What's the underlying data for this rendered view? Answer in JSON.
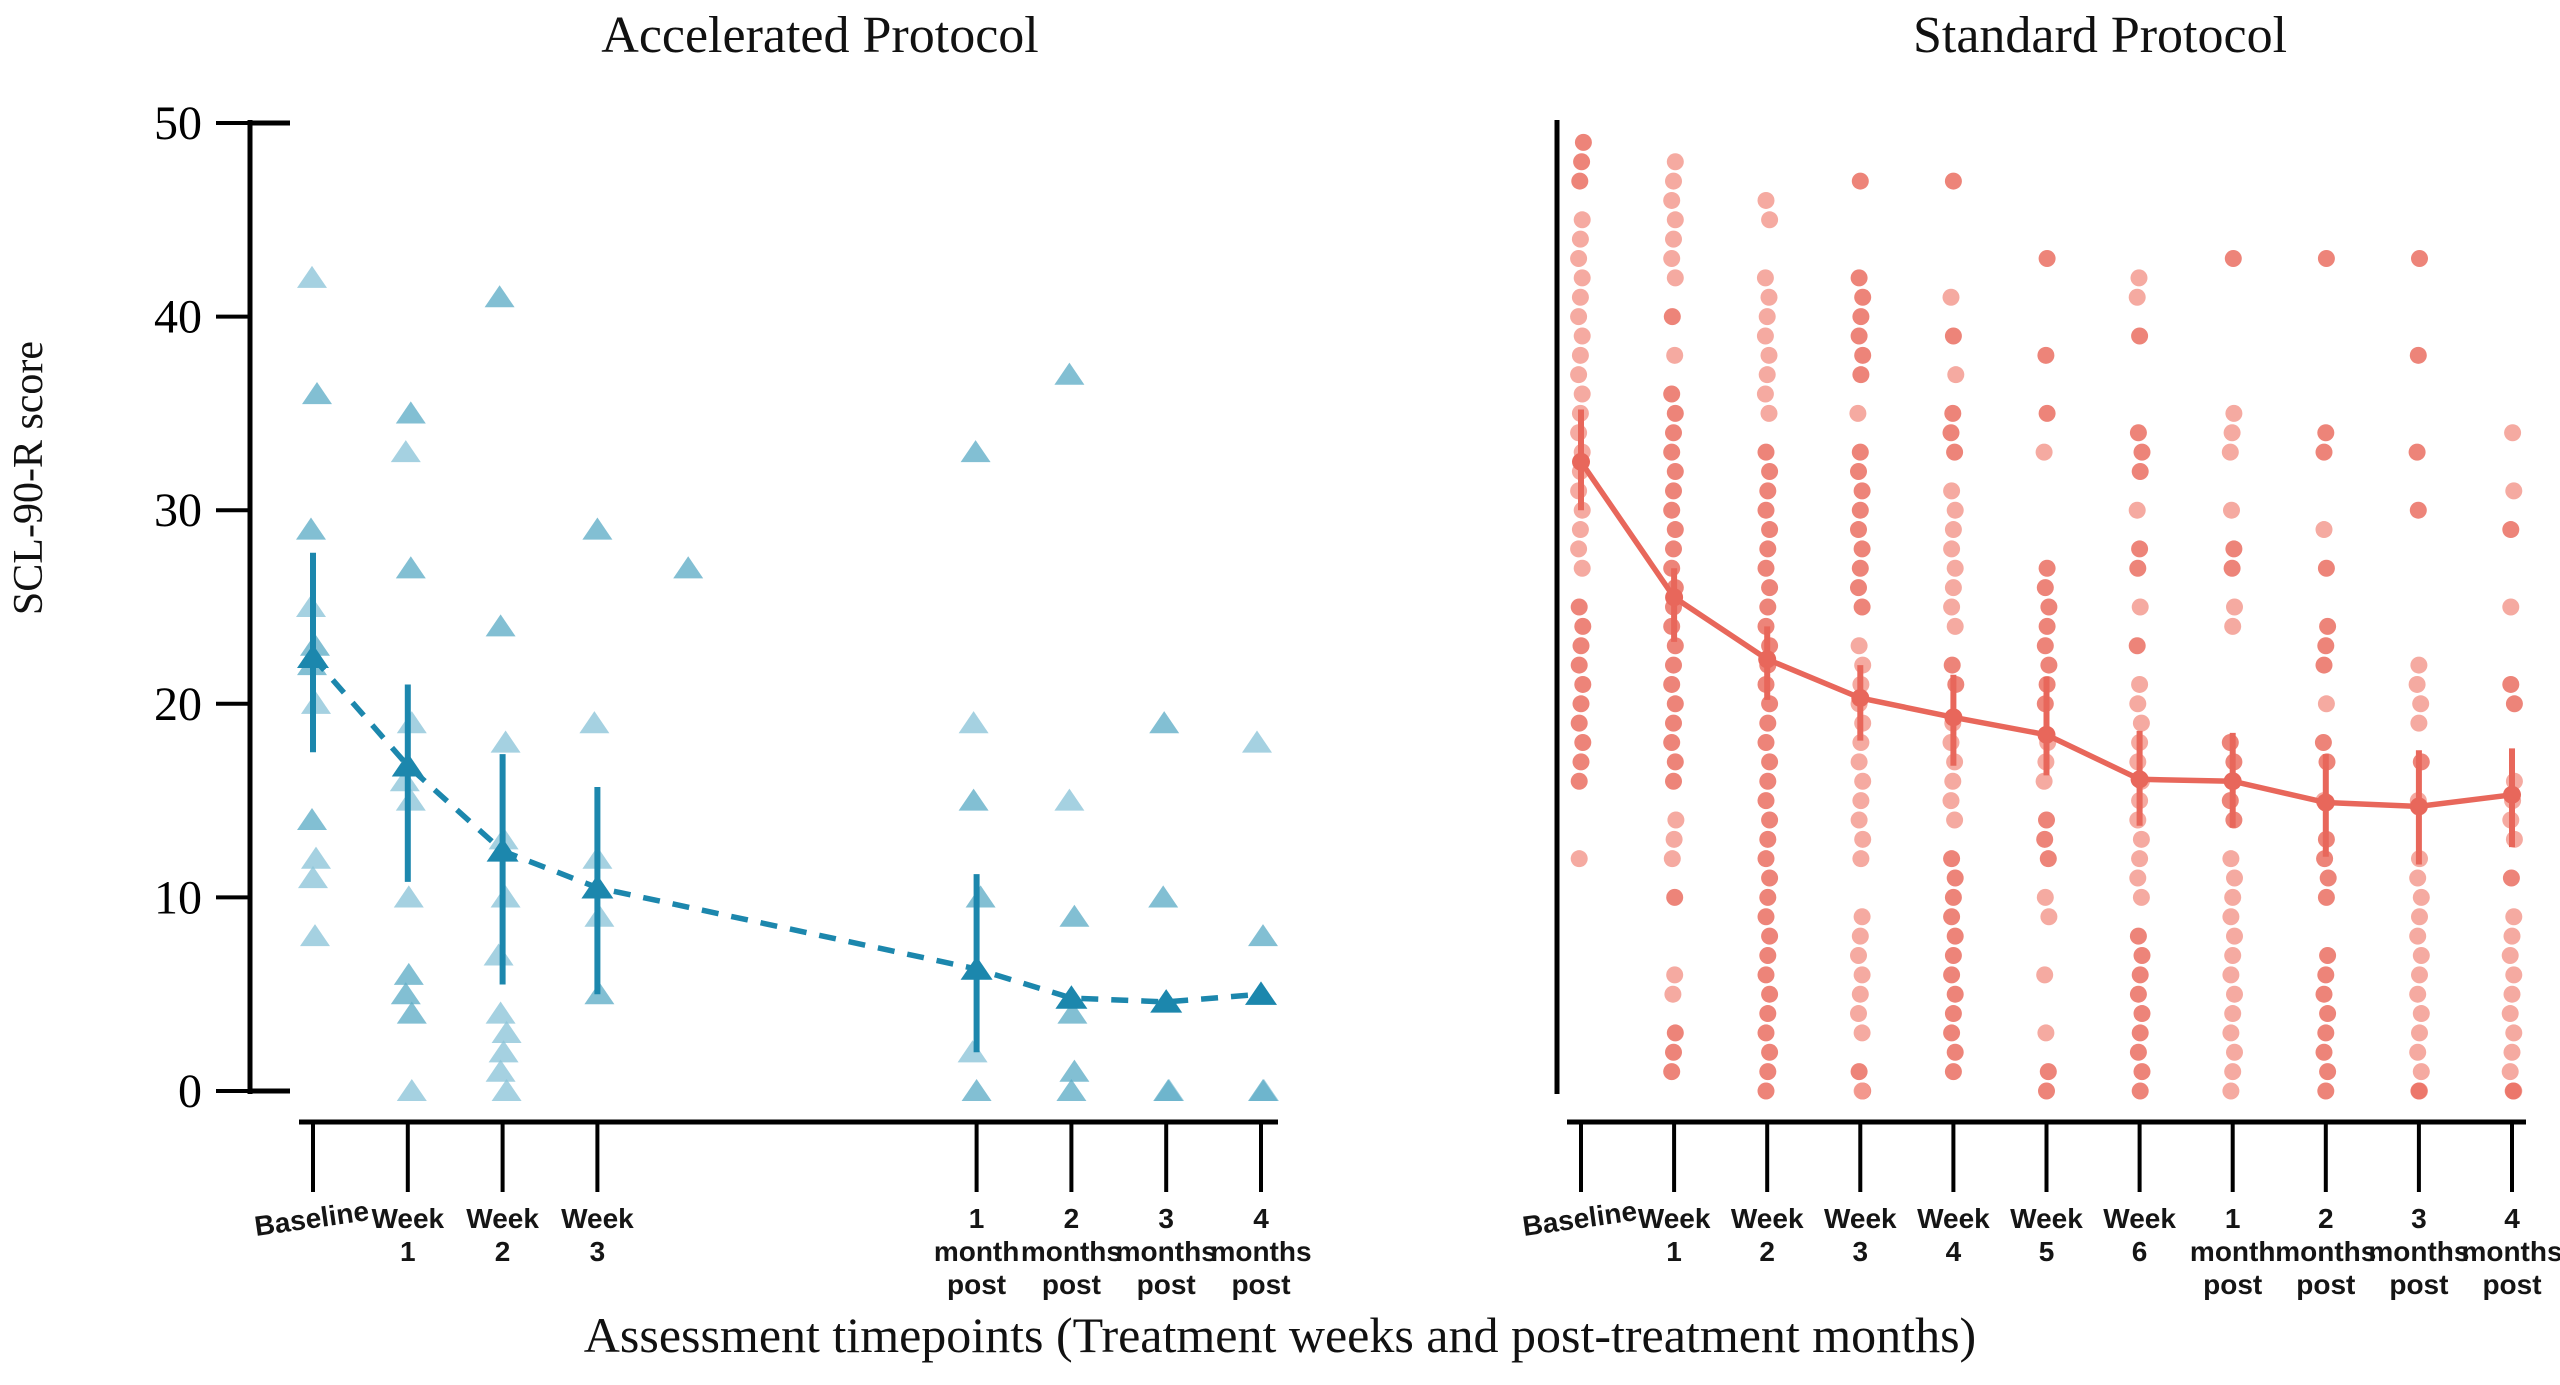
{
  "figure": {
    "xlabel": "Assessment timepoints (Treatment weeks and post-treatment months)",
    "background": "#ffffff",
    "ylim": [
      0,
      50
    ]
  },
  "chart_data": [
    {
      "type": "scatter",
      "title": "Accelerated Protocol",
      "ylabel": "SCL-90-R score",
      "marker": "triangle",
      "line_style": "dashed",
      "ylim": [
        0,
        50
      ],
      "yticks": [
        0,
        10,
        20,
        30,
        40,
        50
      ],
      "colors": {
        "point_shades": [
          "#8cc4d9",
          "#5fadc7"
        ],
        "mean": "#1c87ad"
      },
      "timepoints": [
        {
          "slot": 0,
          "label": [
            "Baseline"
          ],
          "points": [
            42,
            36,
            29,
            25,
            23,
            22,
            20,
            14,
            12,
            11,
            8
          ],
          "mean": 22.4,
          "ci": [
            17.5,
            27.8
          ]
        },
        {
          "slot": 1,
          "label": [
            "Week",
            "1"
          ],
          "points": [
            35,
            33,
            27,
            19,
            16,
            15,
            10,
            6,
            5,
            4,
            0
          ],
          "mean": 16.8,
          "ci": [
            10.8,
            21.0
          ]
        },
        {
          "slot": 2,
          "label": [
            "Week",
            "2"
          ],
          "points": [
            41,
            24,
            18,
            13,
            10,
            7,
            4,
            3,
            2,
            1,
            0
          ],
          "mean": 12.4,
          "ci": [
            5.5,
            17.4
          ]
        },
        {
          "slot": 3,
          "label": [
            "Week",
            "3"
          ],
          "points": [
            29,
            19,
            12,
            9,
            5
          ],
          "mean": 10.5,
          "ci": [
            5.0,
            15.7
          ]
        },
        {
          "slot": 4,
          "label": [],
          "points": [
            27
          ],
          "mean": null,
          "ci": null
        },
        {
          "slot": 7,
          "label": [
            "1",
            "month",
            "post"
          ],
          "points": [
            33,
            19,
            15,
            10,
            2,
            0
          ],
          "mean": 6.3,
          "ci": [
            2.0,
            11.2
          ]
        },
        {
          "slot": 8,
          "label": [
            "2",
            "months",
            "post"
          ],
          "points": [
            37,
            15,
            9,
            4,
            1,
            0
          ],
          "mean": 4.8,
          "ci": null
        },
        {
          "slot": 9,
          "label": [
            "3",
            "months",
            "post"
          ],
          "points": [
            19,
            10,
            0,
            0
          ],
          "mean": 4.6,
          "ci": null
        },
        {
          "slot": 10,
          "label": [
            "4",
            "months",
            "post"
          ],
          "points": [
            18,
            8,
            0,
            0
          ],
          "mean": 5.0,
          "ci": null
        }
      ]
    },
    {
      "type": "scatter",
      "title": "Standard Protocol",
      "ylabel": null,
      "marker": "circle",
      "line_style": "solid",
      "ylim": [
        0,
        50
      ],
      "yticks": [],
      "colors": {
        "point_shades": [
          "#f39b91",
          "#ea6e61"
        ],
        "mean": "#e8675b"
      },
      "timepoints": [
        {
          "slot": 0,
          "label": [
            "Baseline"
          ],
          "points": [
            49,
            48,
            47,
            45,
            44,
            43,
            42,
            41,
            40,
            39,
            38,
            37,
            36,
            35,
            34,
            33,
            32,
            31,
            30,
            29,
            28,
            27,
            25,
            24,
            23,
            22,
            21,
            20,
            19,
            18,
            17,
            16,
            12
          ],
          "mean": 32.5,
          "ci": [
            30.0,
            35.2
          ]
        },
        {
          "slot": 1,
          "label": [
            "Week",
            "1"
          ],
          "points": [
            48,
            47,
            46,
            45,
            44,
            43,
            42,
            40,
            38,
            36,
            35,
            34,
            33,
            32,
            31,
            30,
            29,
            28,
            27,
            26,
            25,
            24,
            23,
            22,
            21,
            20,
            19,
            18,
            17,
            16,
            14,
            13,
            12,
            10,
            6,
            5,
            3,
            2,
            1
          ],
          "mean": 25.5,
          "ci": [
            23.2,
            27.0
          ]
        },
        {
          "slot": 2,
          "label": [
            "Week",
            "2"
          ],
          "points": [
            46,
            45,
            42,
            41,
            40,
            39,
            38,
            37,
            36,
            35,
            33,
            32,
            31,
            30,
            29,
            28,
            27,
            26,
            25,
            24,
            23,
            22,
            21,
            20,
            19,
            18,
            17,
            16,
            15,
            14,
            13,
            12,
            11,
            10,
            9,
            8,
            7,
            6,
            5,
            4,
            3,
            2,
            1,
            0
          ],
          "mean": 22.3,
          "ci": [
            20.2,
            24.0
          ]
        },
        {
          "slot": 3,
          "label": [
            "Week",
            "3"
          ],
          "points": [
            47,
            42,
            41,
            40,
            39,
            38,
            37,
            35,
            33,
            32,
            31,
            30,
            29,
            28,
            27,
            26,
            25,
            23,
            22,
            21,
            20,
            19,
            18,
            17,
            16,
            15,
            14,
            13,
            12,
            9,
            8,
            7,
            6,
            5,
            4,
            3,
            1,
            0,
            0
          ],
          "mean": 20.3,
          "ci": [
            18.1,
            22.0
          ]
        },
        {
          "slot": 4,
          "label": [
            "Week",
            "4"
          ],
          "points": [
            47,
            41,
            39,
            37,
            35,
            34,
            33,
            31,
            30,
            29,
            28,
            27,
            26,
            25,
            24,
            22,
            21,
            19,
            18,
            17,
            16,
            15,
            14,
            12,
            11,
            10,
            9,
            8,
            7,
            6,
            5,
            4,
            3,
            2,
            1
          ],
          "mean": 19.3,
          "ci": [
            16.8,
            21.5
          ]
        },
        {
          "slot": 5,
          "label": [
            "Week",
            "5"
          ],
          "points": [
            43,
            38,
            35,
            33,
            27,
            26,
            25,
            24,
            23,
            22,
            21,
            20,
            18,
            17,
            16,
            14,
            13,
            12,
            10,
            9,
            6,
            3,
            1,
            0
          ],
          "mean": 18.4,
          "ci": [
            16.3,
            21.4
          ]
        },
        {
          "slot": 6,
          "label": [
            "Week",
            "6"
          ],
          "points": [
            42,
            41,
            39,
            34,
            33,
            32,
            30,
            28,
            27,
            25,
            23,
            21,
            20,
            19,
            18,
            17,
            16,
            15,
            14,
            13,
            12,
            11,
            10,
            8,
            7,
            6,
            5,
            4,
            3,
            2,
            1,
            0
          ],
          "mean": 16.1,
          "ci": [
            13.7,
            18.6
          ]
        },
        {
          "slot": 7,
          "label": [
            "1",
            "month",
            "post"
          ],
          "points": [
            43,
            35,
            34,
            33,
            30,
            28,
            27,
            25,
            24,
            18,
            17,
            16,
            15,
            14,
            12,
            11,
            10,
            9,
            8,
            7,
            6,
            5,
            4,
            3,
            2,
            1,
            0
          ],
          "mean": 16.0,
          "ci": [
            13.6,
            18.5
          ]
        },
        {
          "slot": 8,
          "label": [
            "2",
            "months",
            "post"
          ],
          "points": [
            43,
            34,
            33,
            29,
            27,
            24,
            23,
            22,
            20,
            18,
            17,
            15,
            13,
            12,
            11,
            10,
            7,
            6,
            5,
            4,
            3,
            2,
            1,
            0
          ],
          "mean": 14.9,
          "ci": [
            12.1,
            17.4
          ]
        },
        {
          "slot": 9,
          "label": [
            "3",
            "months",
            "post"
          ],
          "points": [
            43,
            38,
            33,
            30,
            22,
            21,
            20,
            19,
            17,
            15,
            12,
            11,
            10,
            9,
            8,
            7,
            6,
            5,
            4,
            3,
            2,
            1,
            0,
            0
          ],
          "mean": 14.7,
          "ci": [
            11.7,
            17.6
          ]
        },
        {
          "slot": 10,
          "label": [
            "4",
            "months",
            "post"
          ],
          "points": [
            34,
            31,
            29,
            25,
            21,
            20,
            16,
            15,
            14,
            13,
            11,
            9,
            8,
            7,
            6,
            5,
            4,
            3,
            2,
            1,
            0,
            0
          ],
          "mean": 15.3,
          "ci": [
            12.6,
            17.7
          ]
        }
      ]
    }
  ]
}
